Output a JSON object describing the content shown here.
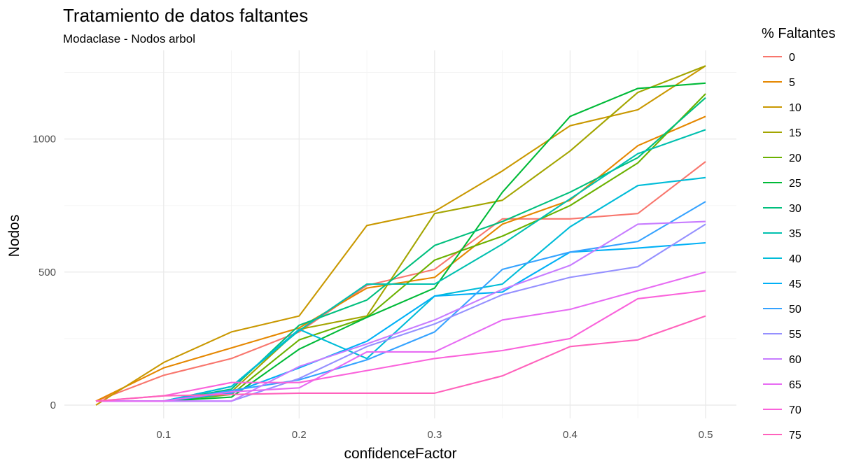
{
  "chart_data": {
    "type": "line",
    "title": "Tratamiento de datos faltantes",
    "subtitle": "Modaclase - Nodos arbol",
    "xlabel": "confidenceFactor",
    "ylabel": "Nodos",
    "legend_title": "% Faltantes",
    "legend_position": "right",
    "grid": true,
    "xlim": [
      0.05,
      0.5
    ],
    "ylim": [
      0,
      1270
    ],
    "x_ticks": [
      "0.1",
      "0.2",
      "0.3",
      "0.4",
      "0.5"
    ],
    "y_ticks": [
      "0",
      "500",
      "1000"
    ],
    "x": [
      0.05,
      0.1,
      0.15,
      0.2,
      0.25,
      0.3,
      0.35,
      0.4,
      0.45,
      0.5
    ],
    "series": [
      {
        "name": "0",
        "color": "#F8766D",
        "values": [
          15,
          112,
          175,
          275,
          450,
          510,
          700,
          700,
          720,
          915
        ]
      },
      {
        "name": "5",
        "color": "#E58700",
        "values": [
          15,
          140,
          215,
          290,
          440,
          480,
          680,
          770,
          975,
          1085
        ]
      },
      {
        "name": "10",
        "color": "#C99800",
        "values": [
          0,
          160,
          275,
          335,
          675,
          728,
          880,
          1050,
          1110,
          1275
        ]
      },
      {
        "name": "15",
        "color": "#A3A500",
        "values": [
          15,
          15,
          50,
          285,
          335,
          720,
          770,
          955,
          1175,
          1275
        ]
      },
      {
        "name": "20",
        "color": "#6BB100",
        "values": [
          15,
          15,
          40,
          245,
          330,
          545,
          635,
          750,
          910,
          1170
        ]
      },
      {
        "name": "25",
        "color": "#00BA38",
        "values": [
          15,
          15,
          30,
          210,
          330,
          440,
          800,
          1085,
          1190,
          1210
        ]
      },
      {
        "name": "30",
        "color": "#00BF7D",
        "values": [
          15,
          15,
          60,
          300,
          395,
          600,
          690,
          800,
          930,
          1155
        ]
      },
      {
        "name": "35",
        "color": "#00C0AF",
        "values": [
          15,
          15,
          70,
          280,
          455,
          455,
          605,
          775,
          945,
          1035
        ]
      },
      {
        "name": "40",
        "color": "#00BCD8",
        "values": [
          15,
          15,
          70,
          285,
          175,
          410,
          455,
          670,
          825,
          855
        ]
      },
      {
        "name": "45",
        "color": "#00B0F6",
        "values": [
          15,
          15,
          45,
          140,
          240,
          410,
          425,
          575,
          590,
          610
        ]
      },
      {
        "name": "50",
        "color": "#35A2FF",
        "values": [
          15,
          15,
          55,
          95,
          170,
          275,
          510,
          575,
          615,
          765
        ]
      },
      {
        "name": "55",
        "color": "#9590FF",
        "values": [
          15,
          15,
          15,
          100,
          220,
          305,
          415,
          480,
          520,
          680
        ]
      },
      {
        "name": "60",
        "color": "#C77CFF",
        "values": [
          15,
          15,
          15,
          145,
          230,
          320,
          435,
          525,
          680,
          690
        ]
      },
      {
        "name": "65",
        "color": "#E76BF3",
        "values": [
          15,
          15,
          50,
          65,
          200,
          200,
          320,
          360,
          430,
          500
        ]
      },
      {
        "name": "70",
        "color": "#FA62DB",
        "values": [
          15,
          35,
          85,
          85,
          130,
          175,
          205,
          250,
          400,
          430
        ]
      },
      {
        "name": "75",
        "color": "#FF62BC",
        "values": [
          15,
          35,
          40,
          45,
          45,
          45,
          110,
          220,
          245,
          335
        ]
      }
    ]
  }
}
